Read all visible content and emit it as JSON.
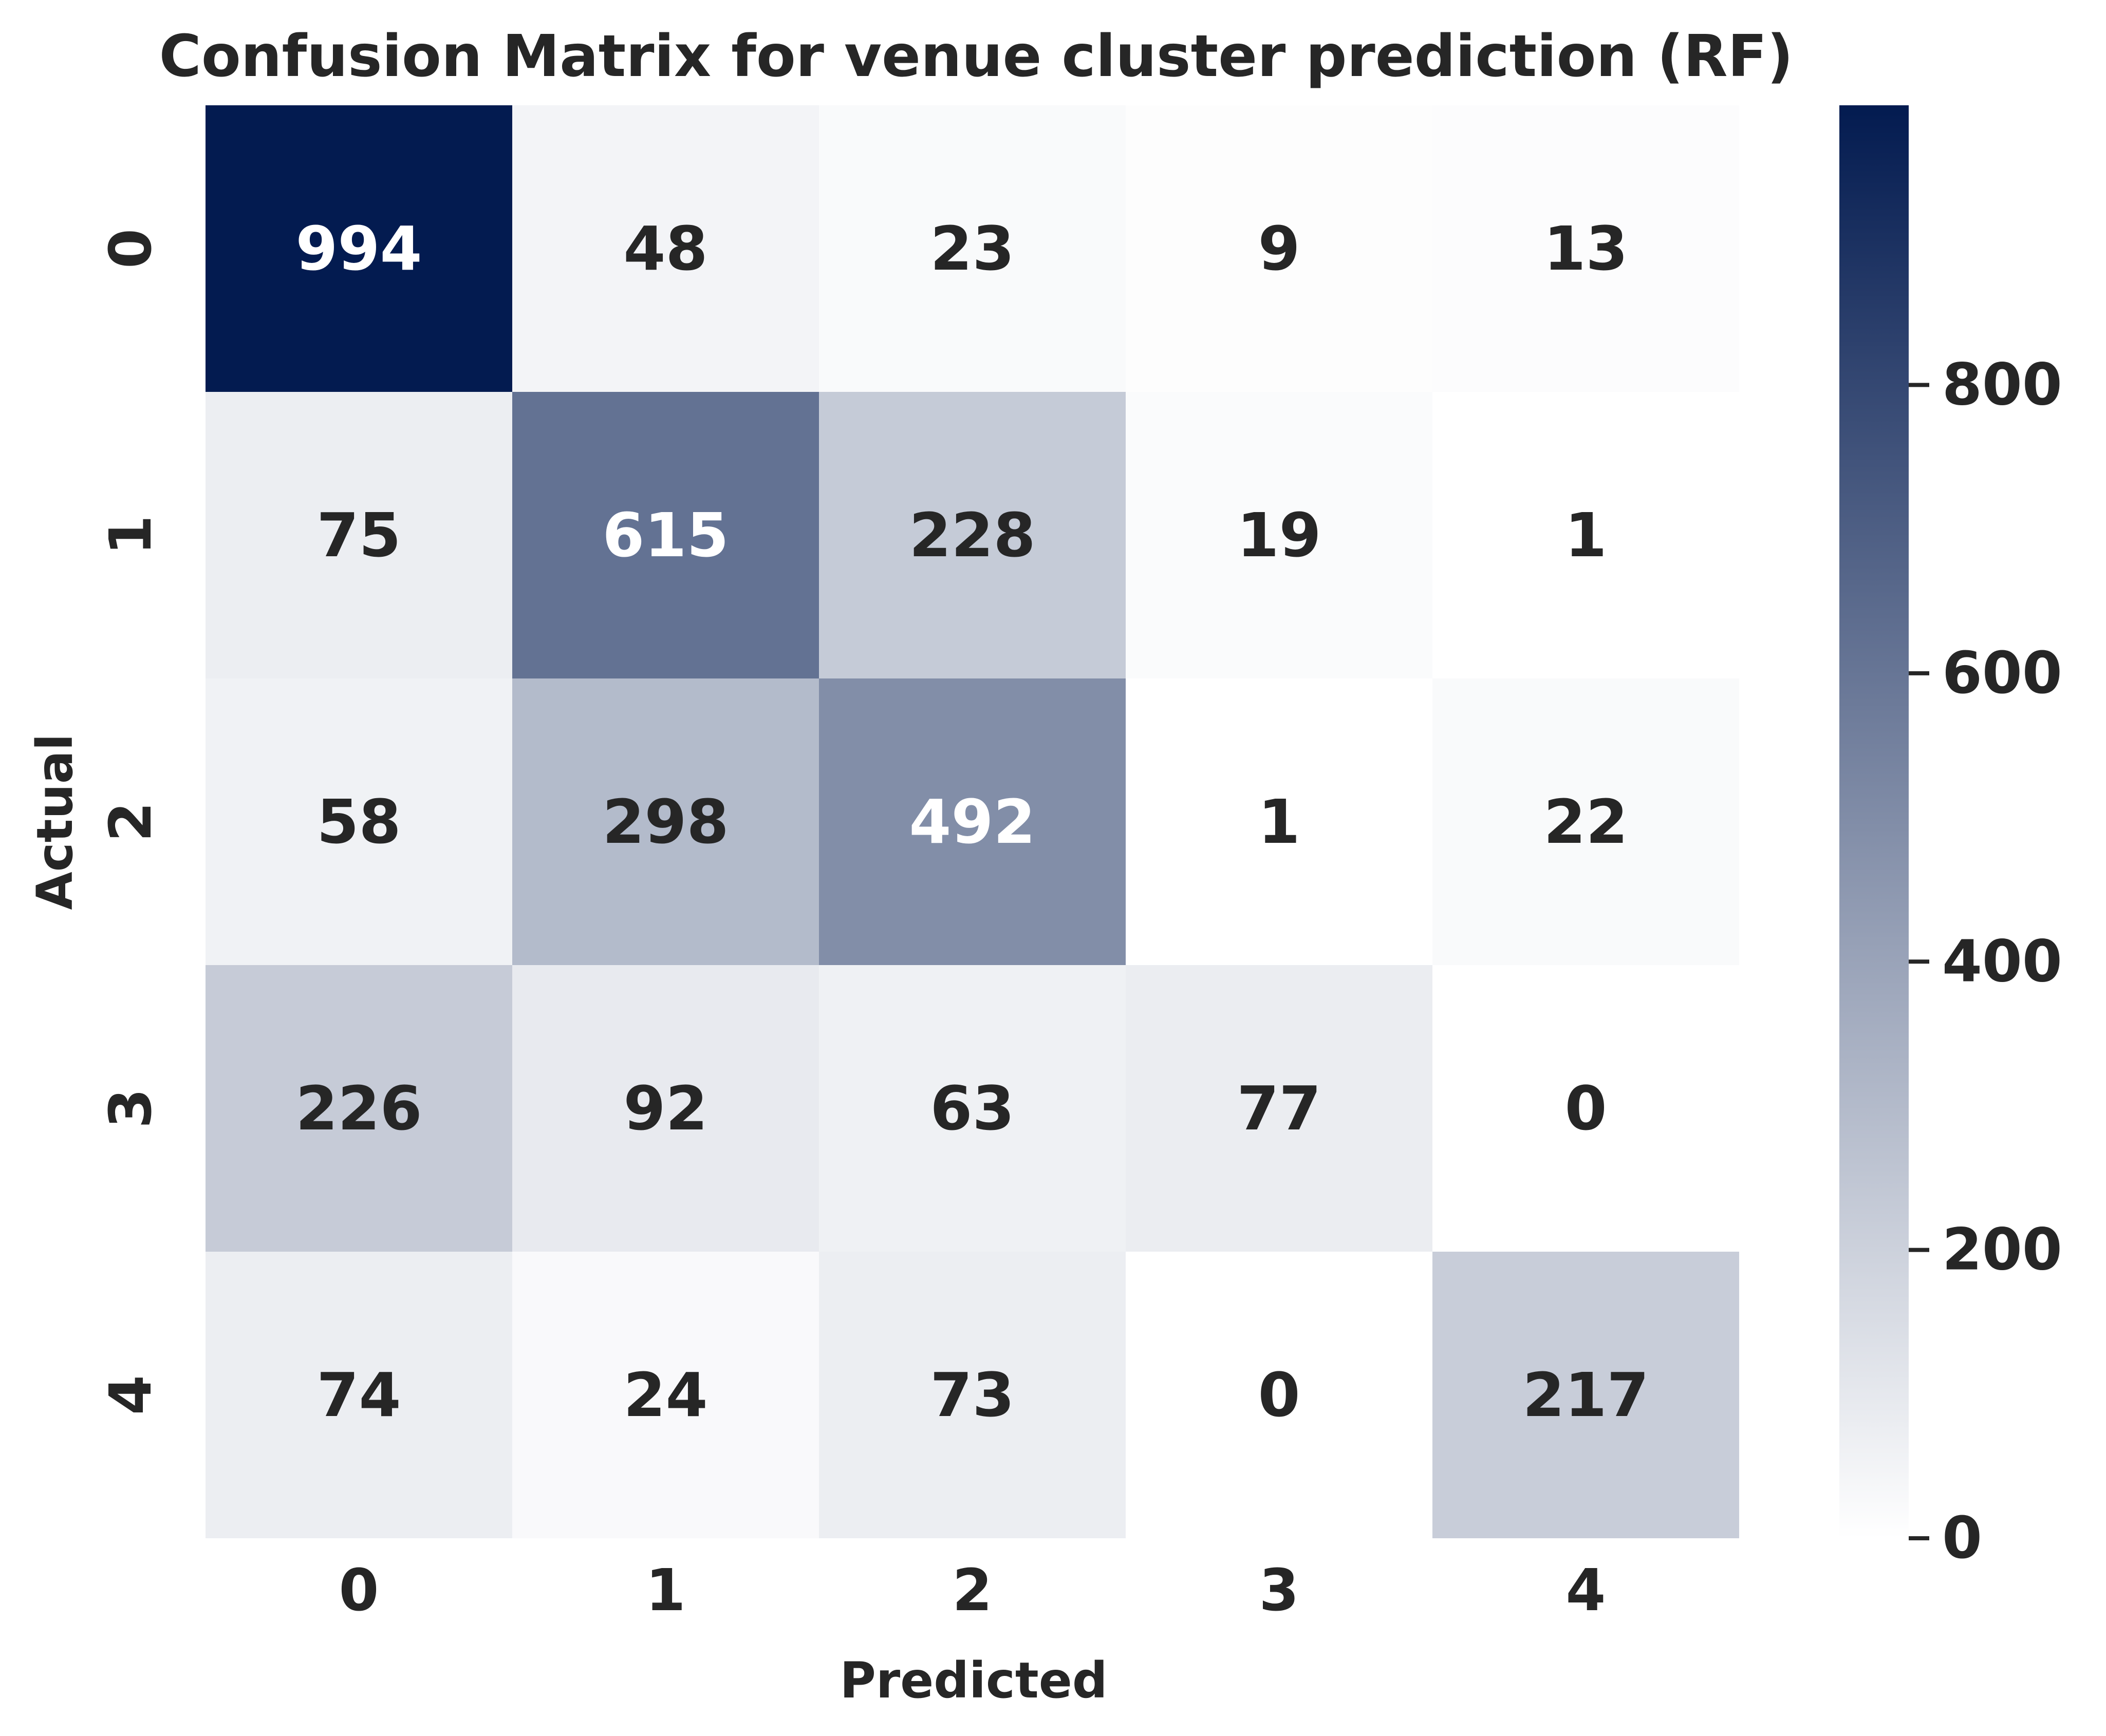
{
  "chart_data": {
    "type": "heatmap",
    "title": "Confusion Matrix for venue cluster prediction (RF)",
    "xlabel": "Predicted",
    "ylabel": "Actual",
    "x_categories": [
      "0",
      "1",
      "2",
      "3",
      "4"
    ],
    "y_categories": [
      "0",
      "1",
      "2",
      "3",
      "4"
    ],
    "values": [
      [
        994,
        48,
        23,
        9,
        13
      ],
      [
        75,
        615,
        228,
        19,
        1
      ],
      [
        58,
        298,
        492,
        1,
        22
      ],
      [
        226,
        92,
        63,
        77,
        0
      ],
      [
        74,
        24,
        73,
        0,
        217
      ]
    ],
    "colorbar": {
      "min": 0,
      "max": 994,
      "ticks": [
        0,
        200,
        400,
        600,
        800
      ],
      "tick_labels": [
        "0",
        "200",
        "400",
        "600",
        "800"
      ],
      "color_low": "#ffffff",
      "color_high": "#031b50"
    },
    "annotation_colors": {
      "dark_text": "#262626",
      "light_text": "#ffffff"
    }
  }
}
